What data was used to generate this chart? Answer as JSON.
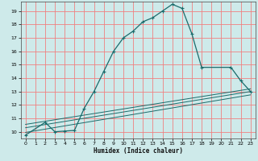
{
  "xlabel": "Humidex (Indice chaleur)",
  "bg_color": "#ceeaea",
  "grid_color": "#f08080",
  "line_color": "#1a6b6b",
  "xlim": [
    -0.5,
    23.5
  ],
  "ylim": [
    9.5,
    19.7
  ],
  "xticks": [
    0,
    1,
    2,
    3,
    4,
    5,
    6,
    7,
    8,
    9,
    10,
    11,
    12,
    13,
    14,
    15,
    16,
    17,
    18,
    19,
    20,
    21,
    22,
    23
  ],
  "yticks": [
    10,
    11,
    12,
    13,
    14,
    15,
    16,
    17,
    18,
    19
  ],
  "main_x": [
    0,
    2,
    3,
    4,
    5,
    6,
    7,
    8,
    9,
    10,
    11,
    12,
    13,
    14,
    15,
    16,
    17,
    18,
    21,
    22,
    23
  ],
  "main_y": [
    9.75,
    10.7,
    10.0,
    10.05,
    10.1,
    11.75,
    13.0,
    14.5,
    16.0,
    17.0,
    17.5,
    18.2,
    18.5,
    19.0,
    19.5,
    19.2,
    17.3,
    14.8,
    14.8,
    13.8,
    13.0
  ],
  "trend1_x": [
    0,
    23
  ],
  "trend1_y": [
    10.55,
    13.2
  ],
  "trend2_x": [
    0,
    23
  ],
  "trend2_y": [
    10.3,
    13.0
  ],
  "trend3_x": [
    0,
    23
  ],
  "trend3_y": [
    9.95,
    12.75
  ]
}
